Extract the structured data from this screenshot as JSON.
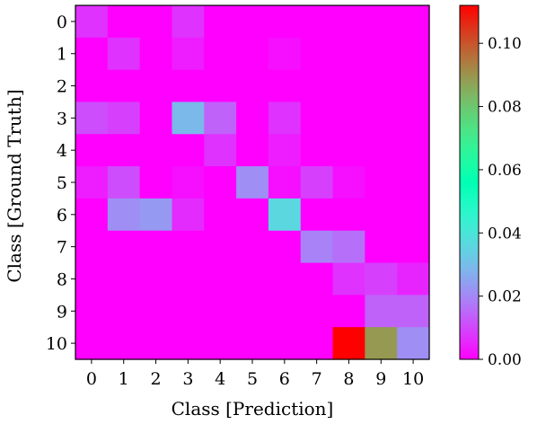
{
  "chart_data": {
    "type": "heatmap",
    "xlabel": "Class [Prediction]",
    "ylabel": "Class [Ground Truth]",
    "x_categories": [
      "0",
      "1",
      "2",
      "3",
      "4",
      "5",
      "6",
      "7",
      "8",
      "9",
      "10"
    ],
    "y_categories": [
      "0",
      "1",
      "2",
      "3",
      "4",
      "5",
      "6",
      "7",
      "8",
      "9",
      "10"
    ],
    "colormap": "rainbow",
    "vmin": 0.0,
    "vmax": 0.112,
    "colorbar_ticks": [
      0.0,
      0.02,
      0.04,
      0.06,
      0.08,
      0.1
    ],
    "colorbar_tick_labels": [
      "0.00",
      "0.02",
      "0.04",
      "0.06",
      "0.08",
      "0.10"
    ],
    "values": [
      [
        0.007,
        0.0,
        0.0,
        0.007,
        0.0,
        0.0,
        0.0,
        0.0,
        0.0,
        0.0,
        0.0
      ],
      [
        0.0,
        0.007,
        0.0,
        0.004,
        0.0,
        0.0,
        0.002,
        0.0,
        0.0,
        0.0,
        0.0
      ],
      [
        0.0,
        0.0,
        0.0,
        0.0,
        0.0,
        0.0,
        0.0,
        0.0,
        0.0,
        0.0,
        0.0
      ],
      [
        0.011,
        0.009,
        0.0,
        0.029,
        0.014,
        0.0,
        0.007,
        0.0,
        0.0,
        0.0,
        0.0
      ],
      [
        0.0,
        0.0,
        0.0,
        0.0,
        0.007,
        0.0,
        0.004,
        0.0,
        0.0,
        0.0,
        0.0
      ],
      [
        0.004,
        0.011,
        0.0,
        0.002,
        0.0,
        0.021,
        0.002,
        0.009,
        0.002,
        0.0,
        0.0
      ],
      [
        0.0,
        0.021,
        0.023,
        0.006,
        0.0,
        0.0,
        0.036,
        0.0,
        0.0,
        0.0,
        0.0
      ],
      [
        0.0,
        0.0,
        0.0,
        0.0,
        0.0,
        0.0,
        0.0,
        0.019,
        0.016,
        0.0,
        0.0
      ],
      [
        0.0,
        0.0,
        0.0,
        0.0,
        0.0,
        0.0,
        0.0,
        0.0,
        0.007,
        0.009,
        0.005
      ],
      [
        0.0,
        0.0,
        0.0,
        0.0,
        0.0,
        0.0,
        0.0,
        0.0,
        0.0,
        0.014,
        0.014
      ],
      [
        0.0,
        0.0,
        0.0,
        0.0,
        0.0,
        0.0,
        0.0,
        0.0,
        0.112,
        0.089,
        0.021
      ]
    ]
  }
}
